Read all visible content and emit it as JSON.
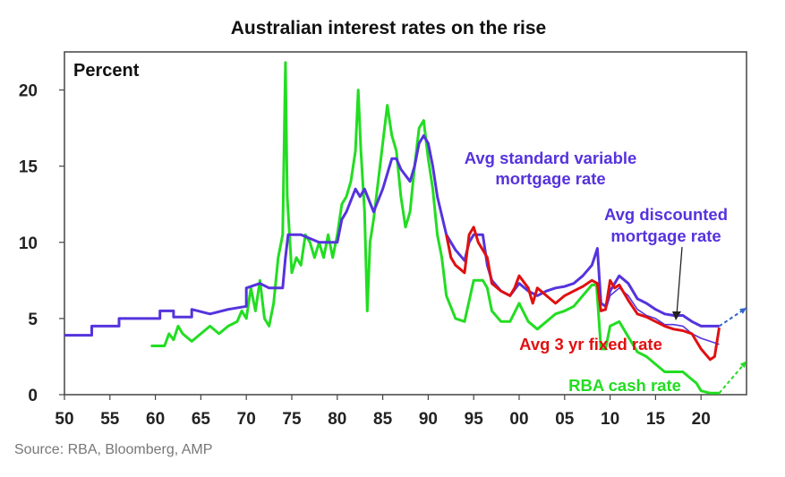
{
  "chart_data": {
    "type": "line",
    "title": "Australian interest rates on the rise",
    "ylabel": "Percent",
    "xlabel": "",
    "xlim": [
      1950,
      2025
    ],
    "ylim": [
      0,
      22.5
    ],
    "x_ticks": [
      1950,
      1955,
      1960,
      1965,
      1970,
      1975,
      1980,
      1985,
      1990,
      1995,
      2000,
      2005,
      2010,
      2015,
      2020
    ],
    "x_tick_labels": [
      "50",
      "55",
      "60",
      "65",
      "70",
      "75",
      "80",
      "85",
      "90",
      "95",
      "00",
      "05",
      "10",
      "15",
      "20"
    ],
    "y_ticks": [
      0,
      5,
      10,
      15,
      20
    ],
    "y_tick_labels": [
      "0",
      "5",
      "10",
      "15",
      "20"
    ],
    "grid": false,
    "source": "Source: RBA, Bloomberg, AMP",
    "series": [
      {
        "name": "Avg standard variable mortgage rate",
        "label_lines": [
          "Avg standard variable",
          "mortgage rate"
        ],
        "color": "#5533dd",
        "values": [
          [
            1950,
            3.9
          ],
          [
            1953,
            3.9
          ],
          [
            1953,
            4.5
          ],
          [
            1956,
            4.5
          ],
          [
            1956,
            5.0
          ],
          [
            1960.5,
            5.0
          ],
          [
            1960.5,
            5.5
          ],
          [
            1962,
            5.5
          ],
          [
            1962,
            5.1
          ],
          [
            1964,
            5.1
          ],
          [
            1964,
            5.6
          ],
          [
            1966,
            5.3
          ],
          [
            1968,
            5.6
          ],
          [
            1970,
            5.8
          ],
          [
            1970,
            7.0
          ],
          [
            1971.5,
            7.3
          ],
          [
            1972.5,
            7.0
          ],
          [
            1974,
            7.0
          ],
          [
            1974.3,
            9.0
          ],
          [
            1974.6,
            10.5
          ],
          [
            1976,
            10.5
          ],
          [
            1978,
            10.0
          ],
          [
            1980,
            10.0
          ],
          [
            1980.5,
            11.5
          ],
          [
            1981,
            12.0
          ],
          [
            1982,
            13.5
          ],
          [
            1982.5,
            13.0
          ],
          [
            1983,
            13.5
          ],
          [
            1984,
            12.0
          ],
          [
            1985,
            13.5
          ],
          [
            1986,
            15.5
          ],
          [
            1986.5,
            15.5
          ],
          [
            1987,
            14.8
          ],
          [
            1988,
            14.0
          ],
          [
            1988.5,
            15.0
          ],
          [
            1989,
            16.5
          ],
          [
            1989.5,
            17.0
          ],
          [
            1990,
            16.5
          ],
          [
            1990.5,
            15.0
          ],
          [
            1991,
            13.0
          ],
          [
            1992,
            10.5
          ],
          [
            1993,
            9.5
          ],
          [
            1994,
            8.8
          ],
          [
            1994.5,
            10.0
          ],
          [
            1995,
            10.5
          ],
          [
            1996,
            10.5
          ],
          [
            1996.5,
            8.5
          ],
          [
            1997,
            7.5
          ],
          [
            1998,
            6.8
          ],
          [
            1999,
            6.5
          ],
          [
            2000,
            7.3
          ],
          [
            2001,
            6.8
          ],
          [
            2002,
            6.5
          ],
          [
            2003,
            6.8
          ],
          [
            2004,
            7.0
          ],
          [
            2005,
            7.1
          ],
          [
            2006,
            7.3
          ],
          [
            2007,
            7.8
          ],
          [
            2008,
            8.5
          ],
          [
            2008.6,
            9.6
          ],
          [
            2009,
            6.0
          ],
          [
            2009.5,
            5.8
          ],
          [
            2010,
            6.8
          ],
          [
            2011,
            7.8
          ],
          [
            2012,
            7.3
          ],
          [
            2013,
            6.3
          ],
          [
            2014,
            6.0
          ],
          [
            2015,
            5.6
          ],
          [
            2016,
            5.3
          ],
          [
            2017,
            5.2
          ],
          [
            2018,
            5.2
          ],
          [
            2019,
            4.8
          ],
          [
            2020,
            4.5
          ],
          [
            2022,
            4.5
          ]
        ]
      },
      {
        "name": "Avg discounted mortgage rate",
        "label_lines": [
          "Avg discounted",
          "mortgage rate"
        ],
        "color": "#5533dd",
        "values": [
          [
            2009.5,
            5.5
          ],
          [
            2010,
            6.5
          ],
          [
            2011,
            7.0
          ],
          [
            2012,
            6.5
          ],
          [
            2013,
            5.6
          ],
          [
            2014,
            5.2
          ],
          [
            2015,
            5.0
          ],
          [
            2016,
            4.6
          ],
          [
            2017,
            4.6
          ],
          [
            2018,
            4.5
          ],
          [
            2019,
            4.0
          ],
          [
            2020,
            3.7
          ],
          [
            2021,
            3.5
          ],
          [
            2022,
            3.3
          ]
        ]
      },
      {
        "name": "Avg 3 yr fixed rate",
        "label_lines": [
          "Avg 3 yr fixed rate"
        ],
        "color": "#e01010",
        "values": [
          [
            1992,
            10.5
          ],
          [
            1992.5,
            9.0
          ],
          [
            1993,
            8.5
          ],
          [
            1994,
            8.0
          ],
          [
            1994.5,
            10.5
          ],
          [
            1995,
            11.0
          ],
          [
            1995.5,
            10.0
          ],
          [
            1996,
            9.5
          ],
          [
            1996.5,
            9.0
          ],
          [
            1997,
            7.3
          ],
          [
            1998,
            6.8
          ],
          [
            1999,
            6.5
          ],
          [
            1999.5,
            7.0
          ],
          [
            2000,
            7.8
          ],
          [
            2001,
            7.0
          ],
          [
            2001.5,
            6.0
          ],
          [
            2002,
            7.0
          ],
          [
            2003,
            6.5
          ],
          [
            2004,
            6.0
          ],
          [
            2005,
            6.5
          ],
          [
            2006,
            6.8
          ],
          [
            2007,
            7.1
          ],
          [
            2008,
            7.5
          ],
          [
            2008.6,
            7.3
          ],
          [
            2009,
            5.5
          ],
          [
            2009.5,
            5.6
          ],
          [
            2010,
            7.5
          ],
          [
            2010.5,
            7.0
          ],
          [
            2011,
            7.2
          ],
          [
            2012,
            6.2
          ],
          [
            2013,
            5.3
          ],
          [
            2014,
            5.1
          ],
          [
            2015,
            4.8
          ],
          [
            2016,
            4.5
          ],
          [
            2017,
            4.3
          ],
          [
            2018,
            4.2
          ],
          [
            2019,
            4.0
          ],
          [
            2020,
            3.0
          ],
          [
            2021,
            2.3
          ],
          [
            2021.5,
            2.5
          ],
          [
            2022,
            4.4
          ]
        ]
      },
      {
        "name": "RBA cash rate",
        "label_lines": [
          "RBA cash rate"
        ],
        "color": "#22dd22",
        "values": [
          [
            1959.5,
            3.2
          ],
          [
            1961,
            3.2
          ],
          [
            1961.5,
            4.0
          ],
          [
            1962,
            3.6
          ],
          [
            1962.5,
            4.5
          ],
          [
            1963,
            4.0
          ],
          [
            1964,
            3.5
          ],
          [
            1965,
            4.0
          ],
          [
            1966,
            4.5
          ],
          [
            1967,
            4.0
          ],
          [
            1968,
            4.5
          ],
          [
            1969,
            4.8
          ],
          [
            1969.5,
            5.5
          ],
          [
            1970,
            5.0
          ],
          [
            1970.5,
            7.0
          ],
          [
            1971,
            5.5
          ],
          [
            1971.5,
            7.5
          ],
          [
            1972,
            5.0
          ],
          [
            1972.5,
            4.5
          ],
          [
            1973,
            6.0
          ],
          [
            1973.5,
            9.0
          ],
          [
            1974,
            10.5
          ],
          [
            1974.3,
            21.8
          ],
          [
            1974.5,
            13.0
          ],
          [
            1975,
            8.0
          ],
          [
            1975.5,
            9.0
          ],
          [
            1976,
            8.5
          ],
          [
            1976.5,
            10.5
          ],
          [
            1977,
            10.0
          ],
          [
            1977.5,
            9.0
          ],
          [
            1978,
            10.0
          ],
          [
            1978.5,
            9.0
          ],
          [
            1979,
            10.5
          ],
          [
            1979.5,
            9.0
          ],
          [
            1980,
            10.5
          ],
          [
            1980.5,
            12.5
          ],
          [
            1981,
            13.0
          ],
          [
            1981.5,
            14.0
          ],
          [
            1982,
            16.0
          ],
          [
            1982.3,
            20.0
          ],
          [
            1982.6,
            16.0
          ],
          [
            1983,
            12.0
          ],
          [
            1983.3,
            5.5
          ],
          [
            1983.6,
            10.0
          ],
          [
            1984,
            11.5
          ],
          [
            1984.5,
            14.0
          ],
          [
            1985,
            16.5
          ],
          [
            1985.5,
            19.0
          ],
          [
            1986,
            17.0
          ],
          [
            1986.5,
            16.0
          ],
          [
            1987,
            13.0
          ],
          [
            1987.5,
            11.0
          ],
          [
            1988,
            12.0
          ],
          [
            1988.5,
            15.0
          ],
          [
            1989,
            17.5
          ],
          [
            1989.5,
            18.0
          ],
          [
            1990,
            15.5
          ],
          [
            1990.5,
            13.5
          ],
          [
            1991,
            10.5
          ],
          [
            1991.5,
            9.0
          ],
          [
            1992,
            6.5
          ],
          [
            1993,
            5.0
          ],
          [
            1994,
            4.8
          ],
          [
            1995,
            7.5
          ],
          [
            1996,
            7.5
          ],
          [
            1996.5,
            7.0
          ],
          [
            1997,
            5.5
          ],
          [
            1998,
            4.8
          ],
          [
            1999,
            4.8
          ],
          [
            2000,
            6.0
          ],
          [
            2001,
            4.8
          ],
          [
            2002,
            4.3
          ],
          [
            2003,
            4.8
          ],
          [
            2004,
            5.3
          ],
          [
            2005,
            5.5
          ],
          [
            2006,
            5.8
          ],
          [
            2007,
            6.5
          ],
          [
            2008,
            7.2
          ],
          [
            2008.5,
            7.2
          ],
          [
            2009,
            3.0
          ],
          [
            2009.5,
            3.0
          ],
          [
            2010,
            4.5
          ],
          [
            2011,
            4.8
          ],
          [
            2012,
            3.8
          ],
          [
            2013,
            2.8
          ],
          [
            2014,
            2.5
          ],
          [
            2015,
            2.0
          ],
          [
            2016,
            1.5
          ],
          [
            2017,
            1.5
          ],
          [
            2018,
            1.5
          ],
          [
            2019,
            1.0
          ],
          [
            2019.5,
            0.75
          ],
          [
            2020,
            0.25
          ],
          [
            2021,
            0.1
          ],
          [
            2022,
            0.1
          ]
        ]
      },
      {
        "name": "Variable mortgage rate projection",
        "label_lines": [],
        "color": "#3366cc",
        "dashed": true,
        "values": [
          [
            2022,
            4.5
          ],
          [
            2025,
            5.7
          ]
        ]
      },
      {
        "name": "Cash rate projection",
        "label_lines": [],
        "color": "#22dd22",
        "dashed": true,
        "values": [
          [
            2022,
            0.1
          ],
          [
            2025,
            2.2
          ]
        ]
      }
    ]
  }
}
